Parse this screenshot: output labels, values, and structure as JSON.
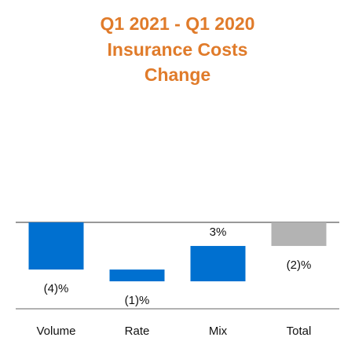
{
  "chart_data": {
    "type": "waterfall",
    "title": [
      "Q1 2021 - Q1 2020",
      "Insurance Costs",
      "Change"
    ],
    "categories": [
      "Volume",
      "Rate",
      "Mix",
      "Total"
    ],
    "values": [
      -4,
      -1,
      3,
      -2
    ],
    "value_labels": [
      "(4)%",
      "(1)%",
      "3%",
      "(2)%"
    ],
    "is_total": [
      false,
      false,
      false,
      true
    ],
    "color": "#0070d0",
    "total_color": "#b3b3b3",
    "title_color": "#e07b2a",
    "ylim": [
      -7.33,
      12.2
    ]
  }
}
